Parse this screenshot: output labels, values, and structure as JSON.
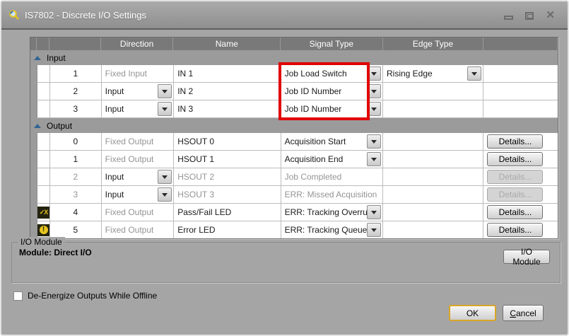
{
  "window": {
    "title": "IS7802 - Discrete I/O Settings"
  },
  "icons": {
    "close": "✕",
    "pass_fail": "✓X",
    "error": "!",
    "collapse": "chevron-up"
  },
  "colors": {
    "highlight_red": "#e10000",
    "status_yellow": "#e7c51f",
    "default_button_border": "#d9a726"
  },
  "table": {
    "headers": [
      "",
      "",
      "",
      "Direction",
      "Name",
      "Signal Type",
      "Edge Type",
      ""
    ],
    "details_label": "Details...",
    "groups": [
      {
        "label": "Input",
        "rows": [
          {
            "icon": null,
            "num": "1",
            "num_disabled": false,
            "direction": "Fixed Input",
            "direction_dropdown": false,
            "direction_disabled": true,
            "name": "IN 1",
            "name_disabled": false,
            "signal": "Job Load Switch",
            "signal_dropdown": true,
            "signal_disabled": false,
            "edge": "Rising Edge",
            "edge_dropdown": true,
            "details": null
          },
          {
            "icon": null,
            "num": "2",
            "num_disabled": false,
            "direction": "Input",
            "direction_dropdown": true,
            "direction_disabled": false,
            "name": "IN 2",
            "name_disabled": false,
            "signal": "Job ID Number",
            "signal_dropdown": true,
            "signal_disabled": false,
            "edge": "",
            "edge_dropdown": false,
            "details": null
          },
          {
            "icon": null,
            "num": "3",
            "num_disabled": false,
            "direction": "Input",
            "direction_dropdown": true,
            "direction_disabled": false,
            "name": "IN 3",
            "name_disabled": false,
            "signal": "Job ID Number",
            "signal_dropdown": true,
            "signal_disabled": false,
            "edge": "",
            "edge_dropdown": false,
            "details": null
          }
        ]
      },
      {
        "label": "Output",
        "rows": [
          {
            "icon": null,
            "num": "0",
            "num_disabled": false,
            "direction": "Fixed Output",
            "direction_dropdown": false,
            "direction_disabled": true,
            "name": "HSOUT 0",
            "name_disabled": false,
            "signal": "Acquisition Start",
            "signal_dropdown": true,
            "signal_disabled": false,
            "edge": "",
            "edge_dropdown": false,
            "details": "enabled"
          },
          {
            "icon": null,
            "num": "1",
            "num_disabled": false,
            "direction": "Fixed Output",
            "direction_dropdown": false,
            "direction_disabled": true,
            "name": "HSOUT 1",
            "name_disabled": false,
            "signal": "Acquisition End",
            "signal_dropdown": true,
            "signal_disabled": false,
            "edge": "",
            "edge_dropdown": false,
            "details": "enabled"
          },
          {
            "icon": null,
            "num": "2",
            "num_disabled": true,
            "direction": "Input",
            "direction_dropdown": true,
            "direction_disabled": false,
            "name": "HSOUT 2",
            "name_disabled": true,
            "signal": "Job Completed",
            "signal_dropdown": false,
            "signal_disabled": true,
            "edge": "",
            "edge_dropdown": false,
            "details": "disabled"
          },
          {
            "icon": null,
            "num": "3",
            "num_disabled": true,
            "direction": "Input",
            "direction_dropdown": true,
            "direction_disabled": false,
            "name": "HSOUT 3",
            "name_disabled": true,
            "signal": "ERR: Missed Acquisition",
            "signal_dropdown": false,
            "signal_disabled": true,
            "edge": "",
            "edge_dropdown": false,
            "details": "disabled"
          },
          {
            "icon": "pass-fail",
            "num": "4",
            "num_disabled": false,
            "direction": "Fixed Output",
            "direction_dropdown": false,
            "direction_disabled": true,
            "name": "Pass/Fail LED",
            "name_disabled": false,
            "signal": "ERR: Tracking Overrun",
            "signal_dropdown": true,
            "signal_disabled": false,
            "edge": "",
            "edge_dropdown": false,
            "details": "enabled"
          },
          {
            "icon": "error",
            "num": "5",
            "num_disabled": false,
            "direction": "Fixed Output",
            "direction_dropdown": false,
            "direction_disabled": true,
            "name": "Error LED",
            "name_disabled": false,
            "signal": "ERR: Tracking Queue Full",
            "signal_dropdown": true,
            "signal_disabled": false,
            "edge": "",
            "edge_dropdown": false,
            "details": "enabled"
          }
        ]
      }
    ]
  },
  "io_module": {
    "legend": "I/O Module",
    "text": "Module: Direct I/O",
    "button": "I/O Module"
  },
  "checkbox": {
    "label": "De-Energize Outputs While Offline",
    "checked": false
  },
  "footer": {
    "ok": "OK",
    "cancel": "Cancel"
  }
}
